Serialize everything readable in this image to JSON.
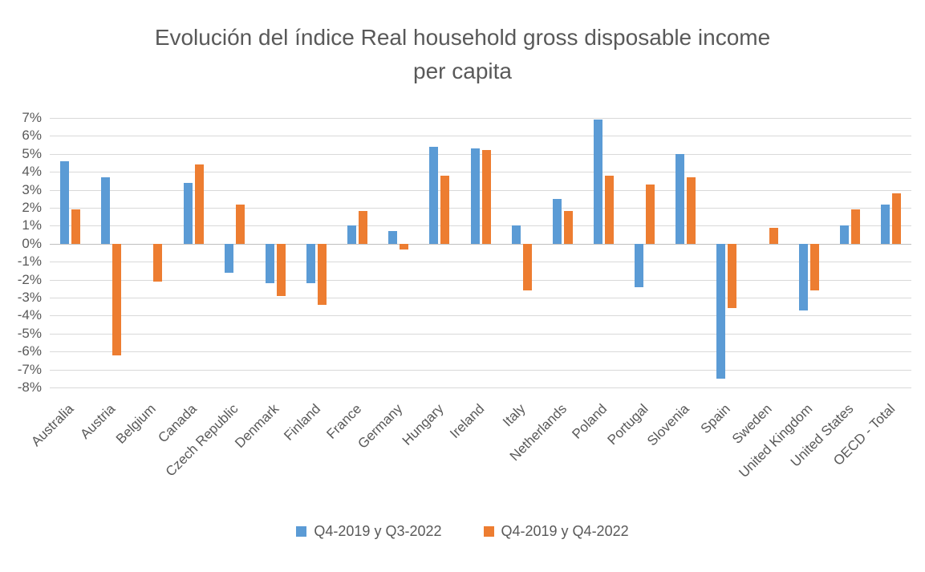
{
  "chart_data": {
    "type": "bar",
    "title": "Evolución del índice Real household gross disposable income per capita",
    "categories": [
      "Australia",
      "Austria",
      "Belgium",
      "Canada",
      "Czech Republic",
      "Denmark",
      "Finland",
      "France",
      "Germany",
      "Hungary",
      "Ireland",
      "Italy",
      "Netherlands",
      "Poland",
      "Portugal",
      "Slovenia",
      "Spain",
      "Sweden",
      "United Kingdom",
      "United States",
      "OECD - Total"
    ],
    "series": [
      {
        "name": "Q4-2019 y Q3-2022",
        "color": "#5B9BD5",
        "values": [
          4.6,
          3.7,
          0,
          3.4,
          -1.6,
          -2.2,
          -2.2,
          1.0,
          0.7,
          5.4,
          5.3,
          1.0,
          2.5,
          6.9,
          -2.4,
          5.0,
          -7.5,
          0,
          -3.7,
          1.0,
          2.2
        ]
      },
      {
        "name": "Q4-2019 y Q4-2022",
        "color": "#ED7D31",
        "values": [
          1.9,
          -6.2,
          -2.1,
          4.4,
          2.2,
          -2.9,
          -3.4,
          1.8,
          -0.3,
          3.8,
          5.2,
          -2.6,
          1.8,
          3.8,
          3.3,
          3.7,
          -3.6,
          0.9,
          -2.6,
          1.9,
          2.8
        ]
      }
    ],
    "xlabel": "",
    "ylabel": "",
    "ylim": [
      -8,
      7
    ],
    "ytick_step": 1,
    "ytick_suffix": "%",
    "grid": true,
    "legend_position": "bottom"
  }
}
